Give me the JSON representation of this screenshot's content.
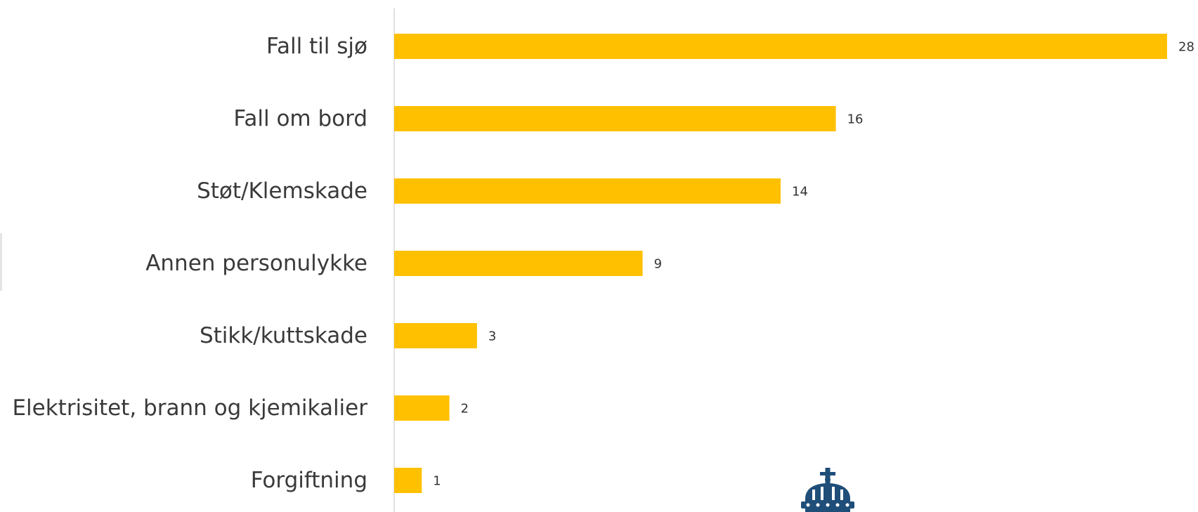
{
  "chart_data": {
    "type": "bar",
    "orientation": "horizontal",
    "categories": [
      "Fall til sjø",
      "Fall om bord",
      "Støt/Klemskade",
      "Annen personulykke",
      "Stikk/kuttskade",
      "Elektrisitet, brann og kjemikalier",
      "Forgiftning"
    ],
    "values": [
      28,
      16,
      14,
      9,
      3,
      2,
      1
    ],
    "value_labels": [
      "28",
      "16",
      "14",
      "9",
      "3",
      "2",
      "1"
    ],
    "xlim": [
      0,
      28
    ],
    "grid": false,
    "legend": "none",
    "bar_color": "#FFC000",
    "axis_color": "#d9d9d9",
    "label_color": "#3a3a3a",
    "logo_color": "#1f4e79"
  },
  "logo": {
    "icon": "crown-icon"
  }
}
